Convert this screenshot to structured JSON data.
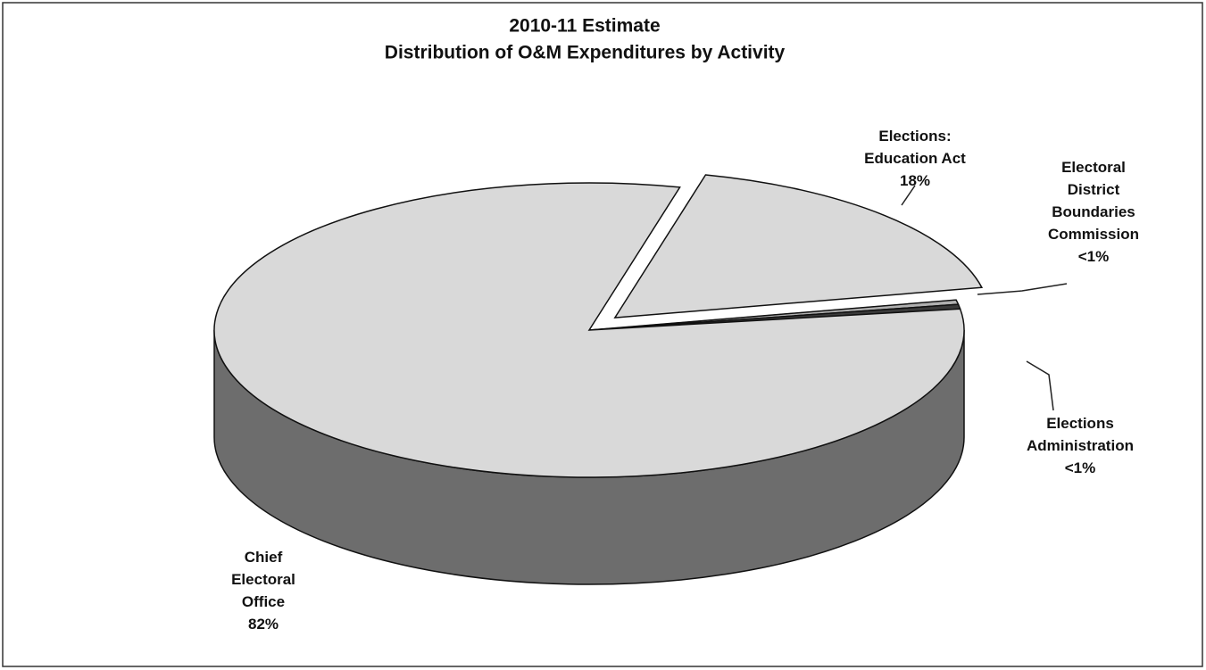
{
  "chart_data": {
    "type": "pie",
    "title": "2010-11 Estimate",
    "subtitle": "Distribution of O&M Expenditures by Activity",
    "categories": [
      "Elections: Education Act",
      "Electoral District Boundaries Commission",
      "Elections Administration",
      "Chief Electoral Office"
    ],
    "values": [
      18,
      0.5,
      0.5,
      82
    ],
    "value_labels": [
      "18%",
      "<1%",
      "<1%",
      "82%"
    ],
    "colors": [
      "#d9d9d9",
      "#b0b0b0",
      "#3a3a3a",
      "#d9d9d9"
    ]
  }
}
